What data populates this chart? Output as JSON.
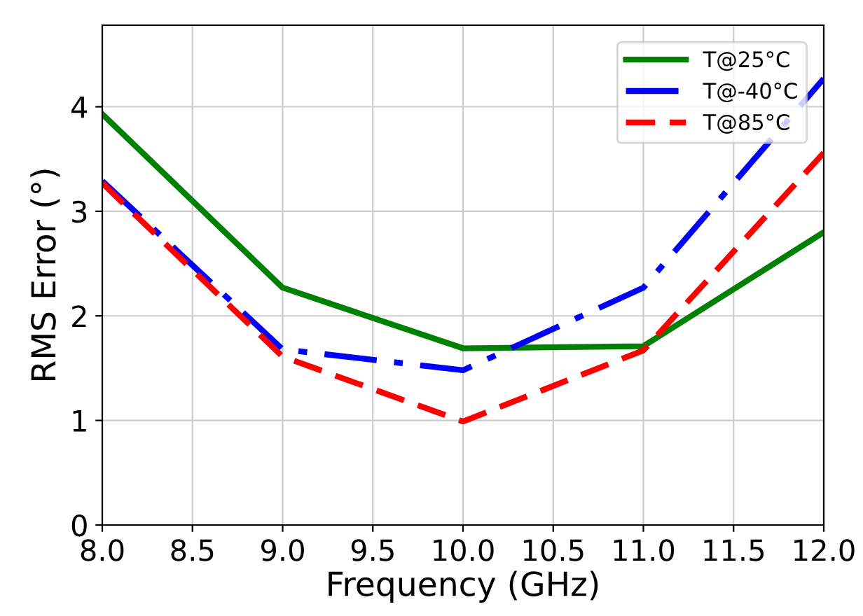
{
  "chart_data": {
    "type": "line",
    "xlabel": "Frequency (GHz)",
    "ylabel": "RMS Error (°)",
    "x": [
      8,
      9,
      10,
      11,
      12
    ],
    "series": [
      {
        "name": "T@25°C",
        "color": "#008000",
        "line_style": "solid",
        "values": [
          3.93,
          2.27,
          1.69,
          1.71,
          2.8
        ]
      },
      {
        "name": "T@-40°C",
        "color": "#0000ff",
        "line_style": "dashdot",
        "values": [
          3.29,
          1.68,
          1.48,
          2.27,
          4.27
        ]
      },
      {
        "name": "T@85°C",
        "color": "#ff0000",
        "line_style": "dashed",
        "values": [
          3.27,
          1.61,
          0.99,
          1.67,
          3.56
        ]
      }
    ],
    "xlim": [
      8,
      12
    ],
    "xticks": [
      {
        "value": 8,
        "label": "8.0"
      },
      {
        "value": 8.5,
        "label": "8.5"
      },
      {
        "value": 9,
        "label": "9.0"
      },
      {
        "value": 9.5,
        "label": "9.5"
      },
      {
        "value": 10,
        "label": "10.0"
      },
      {
        "value": 10.5,
        "label": "10.5"
      },
      {
        "value": 11,
        "label": "11.0"
      },
      {
        "value": 11.5,
        "label": "11.5"
      },
      {
        "value": 12,
        "label": "12.0"
      }
    ],
    "ylim": [
      0,
      4.78
    ],
    "yticks": [
      0,
      1,
      2,
      3,
      4
    ],
    "grid": true,
    "legend": "top right",
    "marker": "none"
  }
}
